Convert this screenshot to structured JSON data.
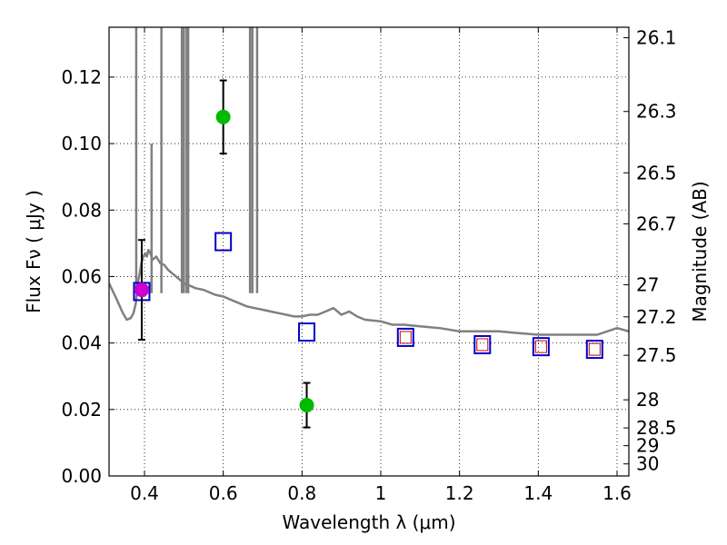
{
  "chart_data": {
    "type": "scatter",
    "xlabel": "Wavelength  λ (μm)",
    "ylabel": "Flux  Fν  ( μJy )",
    "y2label": "Magnitude (AB)",
    "xlim": [
      0.31,
      1.63
    ],
    "ylim": [
      0.0,
      0.135
    ],
    "grid": true,
    "x_ticks": [
      0.4,
      0.6,
      0.8,
      1.0,
      1.2,
      1.4,
      1.6
    ],
    "x_tick_labels": [
      "0.4",
      "0.6",
      "0.8",
      "1",
      "1.2",
      "1.4",
      "1.6"
    ],
    "y_ticks": [
      0.0,
      0.02,
      0.04,
      0.06,
      0.08,
      0.1,
      0.12
    ],
    "y_tick_labels": [
      "0.00",
      "0.02",
      "0.04",
      "0.06",
      "0.08",
      "0.10",
      "0.12"
    ],
    "y2_ticks": [
      26.1,
      26.3,
      26.5,
      26.7,
      27.0,
      27.2,
      27.5,
      28.0,
      28.5,
      29.0,
      30.0
    ],
    "y2_tick_labels": [
      "26.1",
      "26.3",
      "26.5",
      "26.7",
      "27",
      "27.2",
      "27.5",
      "28",
      "28.5",
      "29",
      "30"
    ],
    "series": [
      {
        "name": "model spectrum",
        "kind": "line",
        "color": "#808080",
        "x": [
          0.31,
          0.33,
          0.345,
          0.355,
          0.365,
          0.372,
          0.378,
          0.383,
          0.388,
          0.392,
          0.397,
          0.402,
          0.406,
          0.41,
          0.415,
          0.42,
          0.43,
          0.44,
          0.45,
          0.46,
          0.47,
          0.48,
          0.49,
          0.5,
          0.51,
          0.52,
          0.53,
          0.55,
          0.58,
          0.6,
          0.62,
          0.64,
          0.66,
          0.68,
          0.7,
          0.72,
          0.74,
          0.76,
          0.78,
          0.8,
          0.82,
          0.84,
          0.86,
          0.88,
          0.9,
          0.92,
          0.94,
          0.96,
          1.0,
          1.03,
          1.06,
          1.1,
          1.15,
          1.2,
          1.25,
          1.3,
          1.35,
          1.4,
          1.45,
          1.5,
          1.55,
          1.6,
          1.63
        ],
        "y": [
          0.058,
          0.053,
          0.049,
          0.047,
          0.0475,
          0.049,
          0.052,
          0.058,
          0.061,
          0.064,
          0.066,
          0.067,
          0.066,
          0.068,
          0.067,
          0.065,
          0.066,
          0.064,
          0.0635,
          0.062,
          0.061,
          0.06,
          0.059,
          0.058,
          0.0575,
          0.057,
          0.0565,
          0.056,
          0.0545,
          0.054,
          0.053,
          0.052,
          0.051,
          0.0505,
          0.05,
          0.0495,
          0.049,
          0.0485,
          0.048,
          0.048,
          0.0485,
          0.0485,
          0.0495,
          0.0505,
          0.0485,
          0.0495,
          0.048,
          0.047,
          0.0465,
          0.0455,
          0.0455,
          0.045,
          0.0445,
          0.0435,
          0.0435,
          0.0435,
          0.043,
          0.0425,
          0.0425,
          0.0425,
          0.0425,
          0.0445,
          0.0435
        ]
      },
      {
        "name": "emission lines",
        "kind": "spikes",
        "color": "#808080",
        "lines": [
          {
            "x": 0.379,
            "top": 0.135
          },
          {
            "x": 0.418,
            "top": 0.1
          },
          {
            "x": 0.443,
            "top": 0.135
          },
          {
            "x": 0.495,
            "top": 0.135
          },
          {
            "x": 0.5,
            "top": 0.135
          },
          {
            "x": 0.507,
            "top": 0.135
          },
          {
            "x": 0.511,
            "top": 0.135
          },
          {
            "x": 0.668,
            "top": 0.135
          },
          {
            "x": 0.674,
            "top": 0.135
          },
          {
            "x": 0.686,
            "top": 0.135
          }
        ]
      },
      {
        "name": "model photometry",
        "kind": "open-square",
        "color": "#0000cc",
        "x": [
          0.393,
          0.6,
          0.812,
          1.063,
          1.258,
          1.407,
          1.543
        ],
        "y": [
          0.0555,
          0.0705,
          0.0433,
          0.0417,
          0.0395,
          0.0389,
          0.0381
        ]
      },
      {
        "name": "model photometry inner",
        "kind": "open-square-small",
        "color": "#cc0000",
        "x": [
          1.063,
          1.258,
          1.407,
          1.543
        ],
        "y": [
          0.0417,
          0.0395,
          0.0389,
          0.0381
        ]
      },
      {
        "name": "observed photometry",
        "kind": "errorbar-points",
        "color": "#00bb00",
        "x": [
          0.393,
          0.6,
          0.812
        ],
        "y": [
          0.056,
          0.108,
          0.0213
        ],
        "yerr": [
          0.015,
          0.011,
          0.0067
        ],
        "point_colors": [
          "#cc00cc",
          "#00bb00",
          "#00bb00"
        ]
      }
    ]
  }
}
